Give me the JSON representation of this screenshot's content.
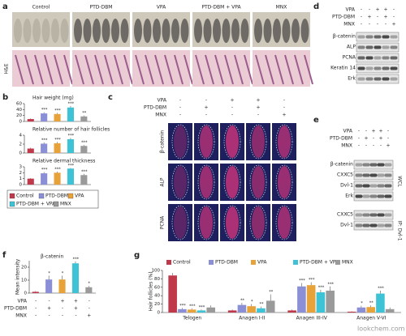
{
  "figure": {
    "a": {
      "label": "a",
      "columns": [
        "Control",
        "PTD-DBM",
        "VPA",
        "PTD-DBM + VPA",
        "MNX"
      ],
      "row_label": "H&E"
    },
    "b": {
      "label": "b",
      "legend": [
        {
          "name": "Control",
          "color": "#c0394b"
        },
        {
          "name": "PTD-DBM",
          "color": "#8a8fd6"
        },
        {
          "name": "VPA",
          "color": "#e8a23a"
        },
        {
          "name": "PTD-DBM + VPA",
          "color": "#3ec3d6"
        },
        {
          "name": "MNX",
          "color": "#9a9a9a"
        }
      ]
    },
    "c": {
      "label": "c",
      "conditions": [
        {
          "name": "VPA",
          "signs": [
            "-",
            "-",
            "+",
            "+",
            "-"
          ]
        },
        {
          "name": "PTD-DBM",
          "signs": [
            "-",
            "+",
            "-",
            "+",
            "-"
          ]
        },
        {
          "name": "MNX",
          "signs": [
            "-",
            "-",
            "-",
            "-",
            "+"
          ]
        }
      ],
      "rows": [
        "β-catenin",
        "ALP",
        "PCNA"
      ]
    },
    "d": {
      "label": "d",
      "conditions": [
        {
          "name": "VPA",
          "signs": [
            "-",
            "-",
            "+",
            "+",
            "-"
          ]
        },
        {
          "name": "PTD-DBM",
          "signs": [
            "-",
            "+",
            "-",
            "+",
            "-"
          ]
        },
        {
          "name": "MNX",
          "signs": [
            "-",
            "-",
            "-",
            "-",
            "+"
          ]
        }
      ],
      "rows": [
        "β-catenin",
        "ALP",
        "PCNA",
        "Keratin 14",
        "Erk"
      ]
    },
    "e": {
      "label": "e",
      "conditions": [
        {
          "name": "VPA",
          "signs": [
            "-",
            "-",
            "+",
            "+",
            "-"
          ]
        },
        {
          "name": "PTD-DBM",
          "signs": [
            "-",
            "+",
            "-",
            "+",
            "-"
          ]
        },
        {
          "name": "MNX",
          "signs": [
            "-",
            "-",
            "-",
            "-",
            "+"
          ]
        }
      ],
      "rows": [
        "β-catenin",
        "CXXC5",
        "Dvl-1",
        "Erk",
        "CXXC5",
        "Dvl-1"
      ],
      "groups": [
        "WCL",
        "IP: Dvl-1"
      ]
    },
    "f": {
      "label": "f"
    },
    "g": {
      "label": "g"
    }
  },
  "watermark": "lookchem.com",
  "chart_data": [
    {
      "type": "bar",
      "title": "Hair weight (mg)",
      "values": [
        8,
        27,
        25,
        47,
        17
      ],
      "errors": [
        2,
        4,
        4,
        5,
        3
      ],
      "sig": [
        null,
        "***",
        "***",
        "***",
        "**"
      ],
      "colors": [
        "#c0394b",
        "#8a8fd6",
        "#e8a23a",
        "#3ec3d6",
        "#9a9a9a"
      ],
      "ylim": [
        0,
        60
      ],
      "yticks": [
        0,
        20,
        40,
        60
      ]
    },
    {
      "type": "bar",
      "title": "Relative number of hair follicles",
      "values": [
        1,
        2.1,
        2.2,
        3.1,
        1.6
      ],
      "errors": [
        0.2,
        0.3,
        0.3,
        0.3,
        0.2
      ],
      "sig": [
        null,
        "***",
        "***",
        "***",
        "***"
      ],
      "colors": [
        "#c0394b",
        "#8a8fd6",
        "#e8a23a",
        "#3ec3d6",
        "#9a9a9a"
      ],
      "ylim": [
        0,
        4
      ],
      "yticks": [
        0,
        2,
        4
      ]
    },
    {
      "type": "bar",
      "title": "Relative dermal thickness",
      "values": [
        1,
        1.9,
        2.0,
        2.7,
        1.6
      ],
      "errors": [
        0.1,
        0.2,
        0.2,
        0.1,
        0.2
      ],
      "sig": [
        null,
        "***",
        "***",
        "***",
        "***"
      ],
      "colors": [
        "#c0394b",
        "#8a8fd6",
        "#e8a23a",
        "#3ec3d6",
        "#9a9a9a"
      ],
      "ylim": [
        0,
        3
      ],
      "yticks": [
        0,
        1,
        2,
        3
      ]
    },
    {
      "type": "bar",
      "title": "β-catenin",
      "ylabel": "Mean intensity",
      "values": [
        1,
        10.5,
        10.5,
        23,
        4.5
      ],
      "errors": [
        0.5,
        3,
        3,
        1.5,
        1
      ],
      "sig": [
        null,
        "*",
        "*",
        "***",
        "*"
      ],
      "colors": [
        "#c0394b",
        "#8a8fd6",
        "#e8a23a",
        "#3ec3d6",
        "#9a9a9a"
      ],
      "ylim": [
        0,
        25
      ],
      "yticks": [
        0,
        10,
        20
      ],
      "conditions": [
        {
          "name": "VPA",
          "signs": [
            "-",
            "-",
            "+",
            "+",
            "-"
          ]
        },
        {
          "name": "PTD-DBM",
          "signs": [
            "-",
            "+",
            "-",
            "+",
            "-"
          ]
        },
        {
          "name": "MNX",
          "signs": [
            "-",
            "-",
            "-",
            "-",
            "+"
          ]
        }
      ]
    },
    {
      "type": "bar",
      "ylabel": "Hair follicles (%)",
      "categories": [
        "Telogen",
        "Anagen I-II",
        "Anagen III-IV",
        "Anagen V-VI"
      ],
      "ylim": [
        0,
        100
      ],
      "yticks": [
        0,
        20,
        40,
        60,
        80,
        100
      ],
      "series": [
        {
          "name": "Control",
          "color": "#c0394b",
          "values": [
            88,
            5,
            5,
            2
          ],
          "errors": [
            6,
            2,
            2,
            1
          ],
          "sig": [
            null,
            null,
            null,
            null
          ]
        },
        {
          "name": "PTD-DBM",
          "color": "#8a8fd6",
          "values": [
            8,
            18,
            62,
            12
          ],
          "errors": [
            3,
            5,
            8,
            4
          ],
          "sig": [
            "***",
            "**",
            "***",
            "*"
          ]
        },
        {
          "name": "VPA",
          "color": "#e8a23a",
          "values": [
            7,
            15,
            65,
            13
          ],
          "errors": [
            3,
            5,
            7,
            4
          ],
          "sig": [
            "***",
            "*",
            "***",
            "**"
          ]
        },
        {
          "name": "PTD-DBM + VPA",
          "color": "#3ec3d6",
          "values": [
            5,
            10,
            48,
            45
          ],
          "errors": [
            2,
            4,
            6,
            7
          ],
          "sig": [
            "***",
            "**",
            "***",
            "***"
          ]
        },
        {
          "name": "MNX",
          "color": "#9a9a9a",
          "values": [
            12,
            28,
            52,
            8
          ],
          "errors": [
            5,
            15,
            10,
            4
          ],
          "sig": [
            null,
            "**",
            "***",
            null
          ]
        }
      ]
    }
  ]
}
